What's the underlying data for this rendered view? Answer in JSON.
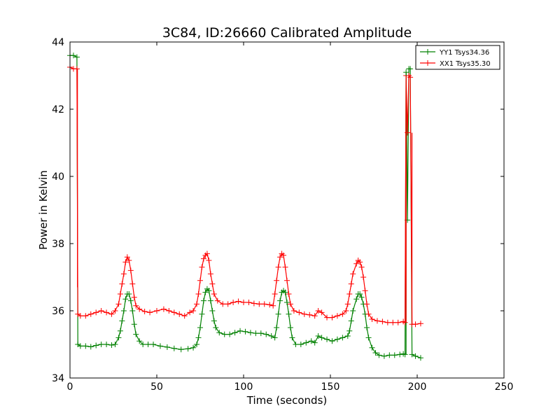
{
  "chart_data": {
    "type": "line",
    "title": "3C84, ID:26660 Calibrated Amplitude",
    "xlabel": "Time (seconds)",
    "ylabel": "Power in Kelvin",
    "xlim": [
      0,
      250
    ],
    "ylim": [
      34,
      44
    ],
    "xticks": [
      0,
      50,
      100,
      150,
      200,
      250
    ],
    "yticks": [
      34,
      36,
      38,
      40,
      42,
      44
    ],
    "grid": false,
    "legend_position": "top-right",
    "series": [
      {
        "name": "YY1 Tsys34.36",
        "color": "#008000",
        "marker": "+",
        "points": [
          [
            0,
            43.6
          ],
          [
            2,
            43.6
          ],
          [
            4,
            43.55
          ],
          [
            4.5,
            35.0
          ],
          [
            6,
            34.95
          ],
          [
            9,
            34.95
          ],
          [
            12,
            34.93
          ],
          [
            15,
            34.97
          ],
          [
            18,
            35.0
          ],
          [
            21,
            35.0
          ],
          [
            24,
            34.98
          ],
          [
            26,
            35.0
          ],
          [
            28,
            35.2
          ],
          [
            29,
            35.4
          ],
          [
            30,
            35.7
          ],
          [
            31,
            36.0
          ],
          [
            32,
            36.35
          ],
          [
            33,
            36.5
          ],
          [
            34,
            36.5
          ],
          [
            35,
            36.3
          ],
          [
            36,
            36.0
          ],
          [
            37,
            35.6
          ],
          [
            38,
            35.3
          ],
          [
            40,
            35.1
          ],
          [
            42,
            35.0
          ],
          [
            45,
            35.0
          ],
          [
            48,
            35.0
          ],
          [
            52,
            34.95
          ],
          [
            56,
            34.92
          ],
          [
            60,
            34.88
          ],
          [
            64,
            34.85
          ],
          [
            68,
            34.87
          ],
          [
            71,
            34.9
          ],
          [
            73,
            35.0
          ],
          [
            74,
            35.2
          ],
          [
            75,
            35.5
          ],
          [
            76,
            35.9
          ],
          [
            77,
            36.3
          ],
          [
            78,
            36.55
          ],
          [
            79,
            36.65
          ],
          [
            80,
            36.6
          ],
          [
            81,
            36.3
          ],
          [
            82,
            36.0
          ],
          [
            83,
            35.7
          ],
          [
            84,
            35.5
          ],
          [
            86,
            35.35
          ],
          [
            89,
            35.3
          ],
          [
            92,
            35.3
          ],
          [
            95,
            35.35
          ],
          [
            98,
            35.4
          ],
          [
            101,
            35.38
          ],
          [
            104,
            35.35
          ],
          [
            107,
            35.33
          ],
          [
            110,
            35.33
          ],
          [
            113,
            35.3
          ],
          [
            116,
            35.25
          ],
          [
            118,
            35.2
          ],
          [
            119,
            35.5
          ],
          [
            120,
            35.9
          ],
          [
            121,
            36.3
          ],
          [
            122,
            36.55
          ],
          [
            123,
            36.6
          ],
          [
            124,
            36.55
          ],
          [
            125,
            36.25
          ],
          [
            126,
            35.9
          ],
          [
            127,
            35.5
          ],
          [
            128,
            35.2
          ],
          [
            130,
            35.0
          ],
          [
            133,
            35.0
          ],
          [
            136,
            35.05
          ],
          [
            139,
            35.1
          ],
          [
            141,
            35.05
          ],
          [
            143,
            35.25
          ],
          [
            145,
            35.2
          ],
          [
            148,
            35.15
          ],
          [
            151,
            35.1
          ],
          [
            154,
            35.15
          ],
          [
            157,
            35.2
          ],
          [
            160,
            35.25
          ],
          [
            161,
            35.4
          ],
          [
            162,
            35.7
          ],
          [
            163,
            36.0
          ],
          [
            165,
            36.35
          ],
          [
            166,
            36.5
          ],
          [
            167,
            36.5
          ],
          [
            168,
            36.4
          ],
          [
            169,
            36.2
          ],
          [
            170,
            35.9
          ],
          [
            171,
            35.5
          ],
          [
            172,
            35.2
          ],
          [
            174,
            34.9
          ],
          [
            176,
            34.75
          ],
          [
            178,
            34.68
          ],
          [
            181,
            34.65
          ],
          [
            184,
            34.68
          ],
          [
            187,
            34.68
          ],
          [
            190,
            34.7
          ],
          [
            192,
            34.72
          ],
          [
            193,
            34.7
          ],
          [
            193.6,
            43.1
          ],
          [
            194.4,
            38.7
          ],
          [
            195.2,
            43.2
          ],
          [
            196,
            43.2
          ],
          [
            197,
            34.7
          ],
          [
            199,
            34.65
          ],
          [
            202,
            34.6
          ]
        ]
      },
      {
        "name": "XX1 Tsys35.30",
        "color": "#ff0000",
        "marker": "+",
        "points": [
          [
            0,
            43.25
          ],
          [
            2,
            43.2
          ],
          [
            4,
            43.2
          ],
          [
            4.5,
            35.9
          ],
          [
            6,
            35.85
          ],
          [
            9,
            35.85
          ],
          [
            12,
            35.9
          ],
          [
            15,
            35.95
          ],
          [
            18,
            36.0
          ],
          [
            21,
            35.95
          ],
          [
            24,
            35.9
          ],
          [
            26,
            36.0
          ],
          [
            28,
            36.2
          ],
          [
            29,
            36.5
          ],
          [
            30,
            36.8
          ],
          [
            31,
            37.1
          ],
          [
            32,
            37.45
          ],
          [
            33,
            37.6
          ],
          [
            34,
            37.5
          ],
          [
            35,
            37.2
          ],
          [
            36,
            36.8
          ],
          [
            37,
            36.4
          ],
          [
            38,
            36.15
          ],
          [
            40,
            36.05
          ],
          [
            43,
            35.98
          ],
          [
            46,
            35.95
          ],
          [
            50,
            36.0
          ],
          [
            54,
            36.05
          ],
          [
            57,
            36.0
          ],
          [
            60,
            35.95
          ],
          [
            63,
            35.9
          ],
          [
            66,
            35.85
          ],
          [
            69,
            35.95
          ],
          [
            71,
            36.0
          ],
          [
            73,
            36.2
          ],
          [
            74,
            36.5
          ],
          [
            75,
            36.9
          ],
          [
            76,
            37.3
          ],
          [
            77,
            37.55
          ],
          [
            78,
            37.65
          ],
          [
            79,
            37.7
          ],
          [
            80,
            37.5
          ],
          [
            81,
            37.1
          ],
          [
            82,
            36.8
          ],
          [
            83,
            36.5
          ],
          [
            85,
            36.3
          ],
          [
            88,
            36.2
          ],
          [
            91,
            36.2
          ],
          [
            94,
            36.25
          ],
          [
            97,
            36.28
          ],
          [
            100,
            36.25
          ],
          [
            103,
            36.25
          ],
          [
            106,
            36.22
          ],
          [
            109,
            36.2
          ],
          [
            112,
            36.2
          ],
          [
            115,
            36.18
          ],
          [
            117,
            36.15
          ],
          [
            118,
            36.5
          ],
          [
            119,
            36.9
          ],
          [
            120,
            37.3
          ],
          [
            121,
            37.6
          ],
          [
            122,
            37.7
          ],
          [
            123,
            37.65
          ],
          [
            124,
            37.3
          ],
          [
            125,
            36.9
          ],
          [
            126,
            36.5
          ],
          [
            127,
            36.2
          ],
          [
            129,
            36.0
          ],
          [
            132,
            35.95
          ],
          [
            135,
            35.9
          ],
          [
            138,
            35.88
          ],
          [
            141,
            35.85
          ],
          [
            143,
            36.0
          ],
          [
            145,
            35.95
          ],
          [
            148,
            35.8
          ],
          [
            151,
            35.8
          ],
          [
            154,
            35.85
          ],
          [
            157,
            35.9
          ],
          [
            159,
            36.0
          ],
          [
            160,
            36.2
          ],
          [
            161,
            36.5
          ],
          [
            162,
            36.8
          ],
          [
            163,
            37.1
          ],
          [
            165,
            37.4
          ],
          [
            166,
            37.5
          ],
          [
            167,
            37.45
          ],
          [
            168,
            37.3
          ],
          [
            169,
            37.0
          ],
          [
            170,
            36.6
          ],
          [
            171,
            36.2
          ],
          [
            172,
            35.9
          ],
          [
            174,
            35.75
          ],
          [
            177,
            35.7
          ],
          [
            180,
            35.68
          ],
          [
            183,
            35.65
          ],
          [
            186,
            35.65
          ],
          [
            189,
            35.65
          ],
          [
            192,
            35.68
          ],
          [
            193,
            35.65
          ],
          [
            193.6,
            43.0
          ],
          [
            194.4,
            41.3
          ],
          [
            195.2,
            43.0
          ],
          [
            196,
            42.95
          ],
          [
            197,
            35.6
          ],
          [
            199,
            35.6
          ],
          [
            202,
            35.62
          ]
        ]
      }
    ],
    "vertical_segments": [
      {
        "series": 1,
        "x": 4.3,
        "y": [
          36.7,
          43.2
        ]
      },
      {
        "series": 0,
        "x": 193.6,
        "y": [
          34.7,
          43.1
        ]
      },
      {
        "series": 1,
        "x": 193.6,
        "y": [
          35.65,
          43.0
        ]
      },
      {
        "series": 1,
        "x": 197.0,
        "y": [
          35.6,
          41.3
        ]
      }
    ]
  }
}
